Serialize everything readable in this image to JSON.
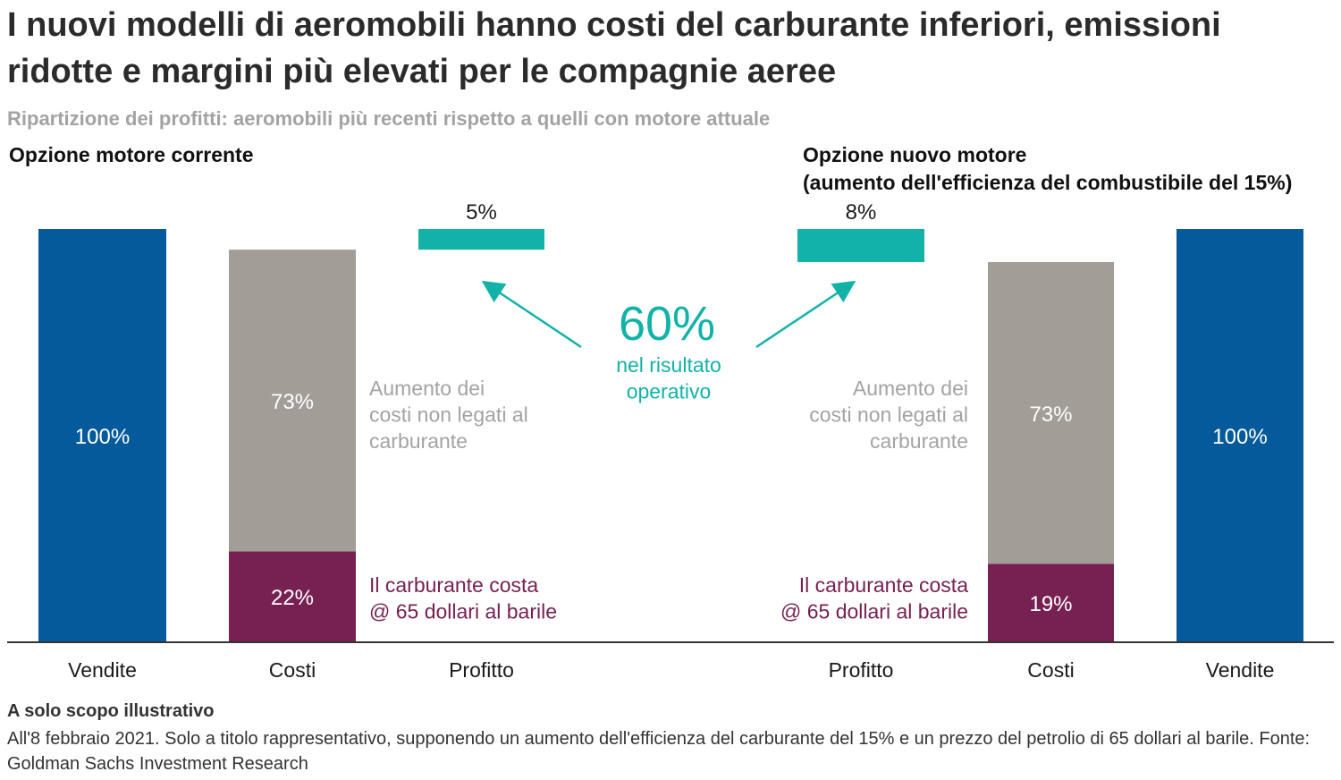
{
  "title": "I nuovi modelli di aeromobili hanno costi del carburante inferiori, emissioni ridotte e margini più elevati per le compagnie aeree",
  "subtitle": "Ripartizione dei profitti: aeromobili più recenti rispetto a quelli con motore attuale",
  "left_section": "Opzione motore corrente",
  "right_section": {
    "line1": "Opzione nuovo motore",
    "line2": "(aumento dell'efficienza del combustibile del 15%)"
  },
  "footer": {
    "heading": "A solo scopo illustrativo",
    "note": "All'8 febbraio 2021. Solo a titolo rappresentativo, supponendo un aumento dell'efficienza del carburante del 15% e un prezzo del petrolio di 65 dollari al barile. Fonte: Goldman Sachs Investment Research"
  },
  "colors": {
    "sales": "#045a9b",
    "non_fuel_costs": "#a39d97",
    "fuel": "#772153",
    "profit": "#12b2a8",
    "note_gray": "#a3a3a3",
    "fuel_text": "#772153",
    "accent": "#12b2a8"
  },
  "chart_data": [
    {
      "type": "bar",
      "panel": "Opzione motore corrente",
      "categories": [
        "Vendite",
        "Costi",
        "Profitto"
      ],
      "series": [
        {
          "category": "Vendite",
          "component": "sales",
          "value": 100,
          "label": "100%"
        },
        {
          "category": "Costi",
          "component": "fuel",
          "value": 22,
          "label": "22%"
        },
        {
          "category": "Costi",
          "component": "non_fuel_costs",
          "value": 73,
          "label": "73%"
        },
        {
          "category": "Profitto",
          "component": "profit",
          "value": 5,
          "label": "5%"
        }
      ],
      "ylim": [
        0,
        100
      ]
    },
    {
      "type": "bar",
      "panel": "Opzione nuovo motore",
      "categories": [
        "Profitto",
        "Costi",
        "Vendite"
      ],
      "series": [
        {
          "category": "Profitto",
          "component": "profit",
          "value": 8,
          "label": "8%"
        },
        {
          "category": "Costi",
          "component": "fuel",
          "value": 19,
          "label": "19%"
        },
        {
          "category": "Costi",
          "component": "non_fuel_costs",
          "value": 73,
          "label": "73%"
        },
        {
          "category": "Vendite",
          "component": "sales",
          "value": 100,
          "label": "100%"
        }
      ],
      "ylim": [
        0,
        100
      ]
    }
  ],
  "annotations": {
    "non_fuel_left": [
      "Aumento dei",
      "costi non legati al",
      "carburante"
    ],
    "non_fuel_right": [
      "Aumento dei",
      "costi non legati al",
      "carburante"
    ],
    "fuel_left": [
      "Il carburante costa",
      "@ 65 dollari al barile"
    ],
    "fuel_right": [
      "Il carburante costa",
      "@ 65 dollari al barile"
    ],
    "center_value": "60%",
    "center_text": [
      "nel risultato",
      "operativo"
    ]
  }
}
